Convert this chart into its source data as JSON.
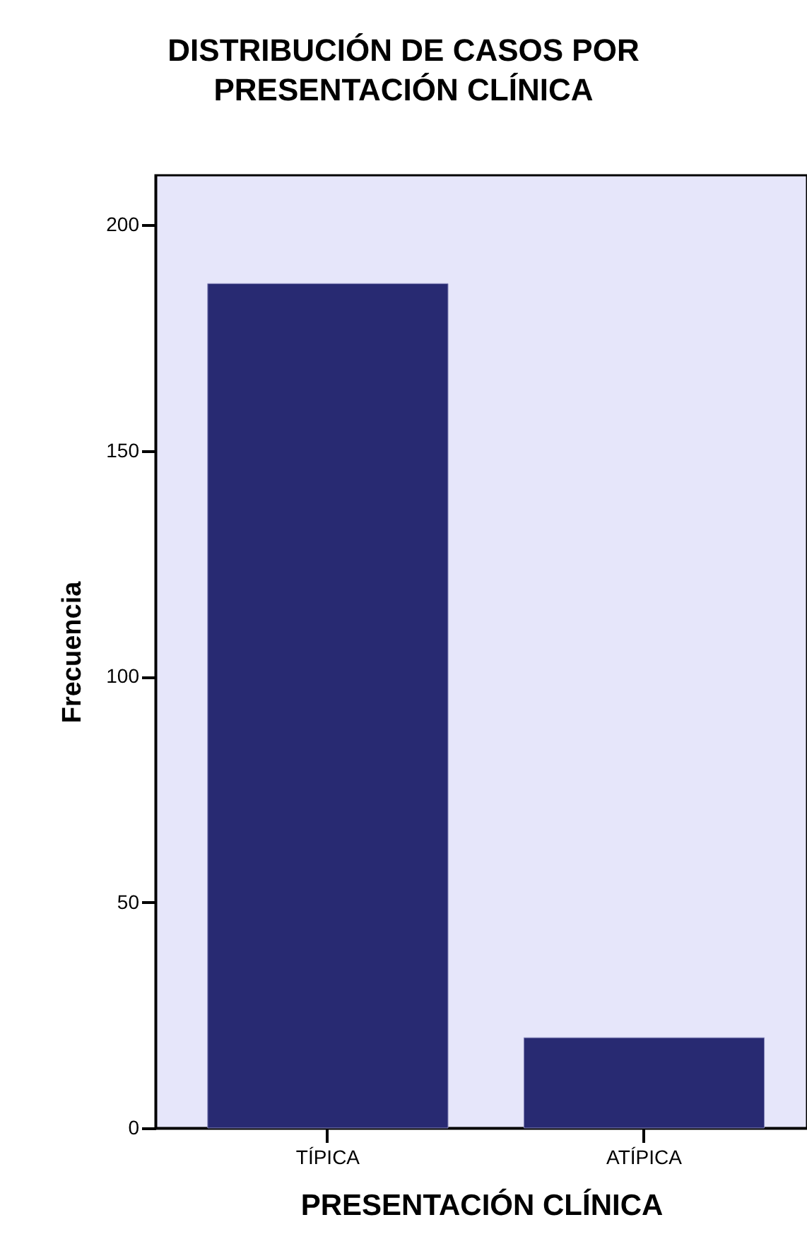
{
  "chart_data": {
    "type": "bar",
    "title": "DISTRIBUCIÓN DE CASOS POR PRESENTACIÓN CLÍNICA",
    "xlabel": "PRESENTACIÓN CLÍNICA",
    "ylabel": "Frecuencia",
    "categories": [
      "TÍPICA",
      "ATÍPICA"
    ],
    "values": [
      187,
      20
    ],
    "color": "#282a72",
    "ylim": [
      0,
      211
    ],
    "yticks": [
      0,
      50,
      100,
      150,
      200
    ],
    "grid": false
  }
}
